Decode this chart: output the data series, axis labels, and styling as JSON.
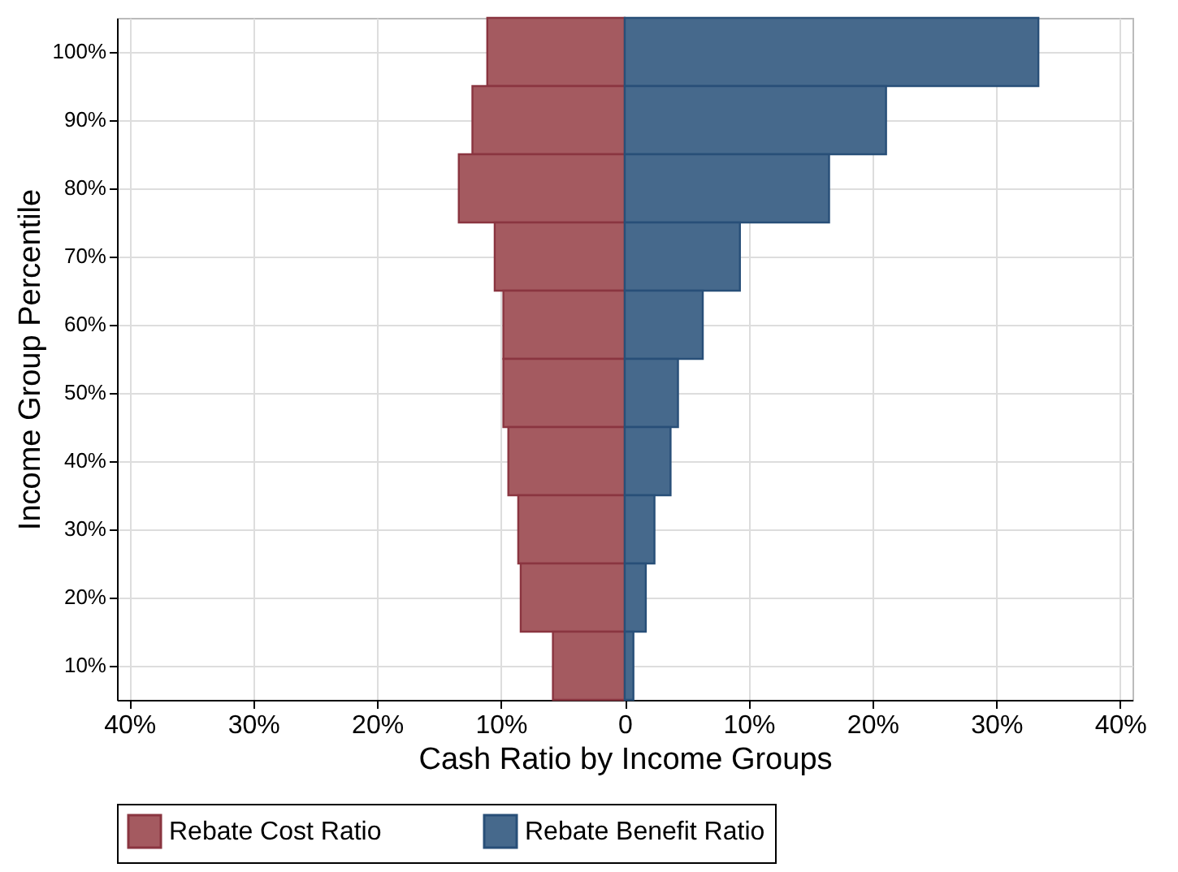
{
  "chart_data": {
    "type": "bar",
    "orientation": "horizontal",
    "xlabel": "Cash Ratio by Income Groups",
    "ylabel": "Income Group Percentile",
    "categories": [
      "100%",
      "90%",
      "80%",
      "70%",
      "60%",
      "50%",
      "40%",
      "30%",
      "20%",
      "10%"
    ],
    "series": [
      {
        "name": "Rebate Cost Ratio",
        "color": "#a45a60",
        "values": [
          -11.1,
          -12.3,
          -13.4,
          -10.5,
          -9.8,
          -9.8,
          -9.4,
          -8.6,
          -8.4,
          -5.8
        ]
      },
      {
        "name": "Rebate Benefit Ratio",
        "color": "#46698c",
        "values": [
          33.4,
          21.1,
          16.5,
          9.3,
          6.3,
          4.3,
          3.7,
          2.4,
          1.7,
          0.7
        ]
      }
    ],
    "xlim": [
      -41,
      41
    ],
    "xticks": [
      {
        "value": -40,
        "label": "40%"
      },
      {
        "value": -30,
        "label": "30%"
      },
      {
        "value": -20,
        "label": "20%"
      },
      {
        "value": -10,
        "label": "10%"
      },
      0,
      {
        "value": 10,
        "label": "10%"
      },
      {
        "value": 20,
        "label": "20%"
      },
      {
        "value": 30,
        "label": "30%"
      },
      {
        "value": 40,
        "label": "40%"
      }
    ],
    "grid": true,
    "legend": "bottom",
    "stacked": true
  }
}
